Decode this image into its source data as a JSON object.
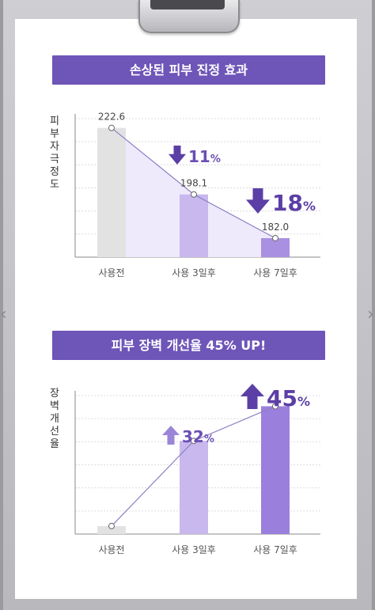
{
  "colors": {
    "banner": "#6e55b8",
    "bar_gray": "#e2e2e2",
    "bar_light": "#c8b8ee",
    "bar_mid": "#a990e0",
    "bar_dark": "#9a80dc",
    "line": "#8b7fc4",
    "fill_area": "#eeeafb",
    "arrow_dark": "#5b3fa6",
    "arrow_light": "#9b85d8"
  },
  "chart_data": [
    {
      "type": "bar",
      "title": "손상된 피부 진정 효과",
      "ylabel": "피부자극정도",
      "categories": [
        "사용전",
        "사용 3일후",
        "사용 7일후"
      ],
      "values": [
        222.6,
        198.1,
        182.0
      ],
      "value_labels": [
        "222.6",
        "198.1",
        "182.0"
      ],
      "ylim": [
        175,
        226
      ],
      "grid": true,
      "overlay": "line",
      "annotations": [
        {
          "text": "11%",
          "direction": "down",
          "between": [
            0,
            1
          ]
        },
        {
          "text": "18%",
          "direction": "down",
          "between": [
            1,
            2
          ]
        }
      ]
    },
    {
      "type": "bar",
      "title": "피부 장벽 개선율 45% UP!",
      "ylabel": "장벽개선율",
      "categories": [
        "사용전",
        "사용 3일후",
        "사용 7일후"
      ],
      "values": [
        0,
        32,
        45
      ],
      "ylim": [
        -3,
        49
      ],
      "grid": true,
      "overlay": "line",
      "annotations": [
        {
          "text": "32%",
          "direction": "up",
          "between": [
            0,
            1
          ]
        },
        {
          "text": "45%",
          "direction": "up",
          "between": [
            1,
            2
          ]
        }
      ]
    }
  ],
  "nav": {
    "prev_icon": "chevron-left-icon",
    "next_icon": "chevron-right-icon",
    "prev_glyph": "‹",
    "next_glyph": "›"
  }
}
